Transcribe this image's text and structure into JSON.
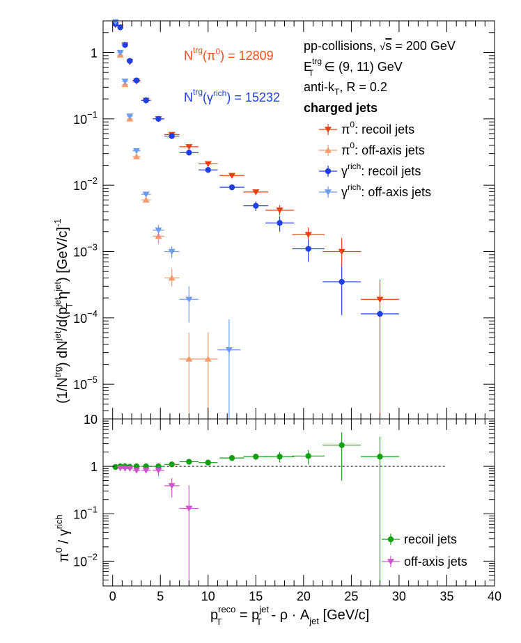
{
  "colors": {
    "pi0_recoil": "#e8400f",
    "pi0_offaxis": "#f59a6a",
    "gamma_recoil": "#1f3fe0",
    "gamma_offaxis": "#6e9cf0",
    "ratio_recoil": "#12a012",
    "ratio_offaxis": "#cc55cc",
    "ntrg_pi0_text": "#f0501a",
    "ntrg_gamma_text": "#1f3fe0"
  },
  "annotations": {
    "ntrg_pi0": {
      "pre": "N",
      "sup": "trg",
      "mid": "(π",
      "sup2": "0",
      "post": ") = 12809"
    },
    "ntrg_gamma": {
      "pre": "N",
      "sup": "trg",
      "mid": "(γ",
      "sup2": "rich",
      "post": ") = 15232"
    },
    "collision": {
      "pre": "pp-collisions, ",
      "sqrt": "√",
      "s": "s",
      "post": " = 200 GeV"
    },
    "et_range": {
      "pre": "E",
      "sup": "trg",
      "sub": "T",
      "post": " ∈ (9, 11) GeV"
    },
    "algo": {
      "pre": "anti-k",
      "sub": "T",
      "post": ", R = 0.2"
    },
    "jets_label": "charged jets"
  },
  "chart_data": [
    {
      "type": "scatter",
      "panel": "top",
      "yscale": "log",
      "xlim": [
        -1,
        40
      ],
      "ylim": [
        3e-06,
        3
      ],
      "ylabel": {
        "p1": "(1/N",
        "s1": "trg",
        "p2": ") dN",
        "s2": "jet",
        "p3": "/d(p",
        "s3": "jet",
        "b3": "T",
        "p4": " η",
        "s4": "jet",
        "p5": ") [GeV/c]",
        "s5": "-1"
      },
      "ytick_labels": [
        {
          "v": 1,
          "t": "1"
        },
        {
          "v": 0.1,
          "b": "10",
          "e": "−1"
        },
        {
          "v": 0.01,
          "b": "10",
          "e": "−2"
        },
        {
          "v": 0.001,
          "b": "10",
          "e": "−3"
        },
        {
          "v": 0.0001,
          "b": "10",
          "e": "−4"
        },
        {
          "v": 1e-05,
          "b": "10",
          "e": "−5"
        }
      ],
      "legend": [
        {
          "key": "pi0_recoil",
          "marker": "tri-down",
          "pre": "π",
          "sup": "0",
          "post": ": recoil jets"
        },
        {
          "key": "pi0_offaxis",
          "marker": "tri-up",
          "pre": "π",
          "sup": "0",
          "post": ": off-axis jets"
        },
        {
          "key": "gamma_recoil",
          "marker": "circle",
          "pre": "γ",
          "sup": "rich",
          "post": ": recoil jets"
        },
        {
          "key": "gamma_offaxis",
          "marker": "tri-down",
          "pre": "γ",
          "sup": "rich",
          "post": ": off-axis jets"
        }
      ],
      "series": [
        {
          "key": "pi0_recoil",
          "name": "π0: recoil jets",
          "marker": "tri-down",
          "points": [
            [
              0.3,
              0.3,
              2.6,
              null,
              null
            ],
            [
              0.8,
              0.3,
              2.4,
              null,
              null
            ],
            [
              1.3,
              0.3,
              1.3,
              null,
              null
            ],
            [
              1.8,
              0.3,
              0.72,
              null,
              null
            ],
            [
              2.5,
              0.4,
              0.37,
              null,
              null
            ],
            [
              3.5,
              0.5,
              0.19,
              null,
              null
            ],
            [
              4.8,
              0.6,
              0.1,
              null,
              null
            ],
            [
              6.2,
              0.8,
              0.058,
              null,
              null
            ],
            [
              8.0,
              1.0,
              0.038,
              null,
              null
            ],
            [
              10.0,
              1.0,
              0.021,
              null,
              null
            ],
            [
              12.5,
              1.3,
              0.014,
              null,
              null
            ],
            [
              15.0,
              1.3,
              0.0079,
              null,
              null
            ],
            [
              17.5,
              1.5,
              0.0042,
              0.0035,
              0.005
            ],
            [
              20.5,
              1.7,
              0.0018,
              0.0014,
              0.0023
            ],
            [
              24.0,
              2.0,
              0.001,
              0.0006,
              0.0016
            ],
            [
              28.0,
              2.0,
              0.00019,
              2.5e-06,
              0.00038
            ]
          ]
        },
        {
          "key": "pi0_offaxis",
          "name": "π0: off-axis jets",
          "marker": "tri-up",
          "points": [
            [
              0.8,
              0.3,
              0.92,
              null,
              null
            ],
            [
              1.3,
              0.3,
              0.33,
              null,
              null
            ],
            [
              1.8,
              0.3,
              0.1,
              null,
              null
            ],
            [
              2.5,
              0.4,
              0.027,
              null,
              null
            ],
            [
              3.5,
              0.5,
              0.006,
              null,
              null
            ],
            [
              4.8,
              0.6,
              0.0017,
              0.0013,
              0.0021
            ],
            [
              6.2,
              0.8,
              0.0004,
              0.0003,
              0.00055
            ],
            [
              8.0,
              1.0,
              2.4e-05,
              2.5e-06,
              6e-05
            ],
            [
              10.0,
              1.0,
              2.4e-05,
              2.5e-06,
              6e-05
            ]
          ]
        },
        {
          "key": "gamma_recoil",
          "name": "γrich: recoil jets",
          "marker": "circle",
          "points": [
            [
              0.3,
              0.3,
              2.7,
              null,
              null
            ],
            [
              0.8,
              0.3,
              2.4,
              null,
              null
            ],
            [
              1.3,
              0.3,
              1.3,
              null,
              null
            ],
            [
              1.8,
              0.3,
              0.75,
              null,
              null
            ],
            [
              2.5,
              0.4,
              0.38,
              null,
              null
            ],
            [
              3.5,
              0.5,
              0.19,
              null,
              null
            ],
            [
              4.8,
              0.6,
              0.1,
              null,
              null
            ],
            [
              6.2,
              0.8,
              0.055,
              null,
              null
            ],
            [
              8.0,
              1.0,
              0.031,
              null,
              null
            ],
            [
              10.0,
              1.0,
              0.017,
              null,
              null
            ],
            [
              12.5,
              1.3,
              0.0093,
              null,
              null
            ],
            [
              15.0,
              1.3,
              0.0049,
              0.0041,
              0.0057
            ],
            [
              17.5,
              1.5,
              0.0027,
              0.002,
              0.0034
            ],
            [
              20.5,
              1.7,
              0.0011,
              0.0007,
              0.0015
            ],
            [
              24.0,
              2.0,
              0.00035,
              0.00011,
              0.0006
            ],
            [
              28.0,
              2.0,
              0.000115,
              null,
              null
            ]
          ]
        },
        {
          "key": "gamma_offaxis",
          "name": "γrich: off-axis jets",
          "marker": "tri-down",
          "points": [
            [
              0.3,
              0.3,
              2.9,
              null,
              null
            ],
            [
              0.8,
              0.3,
              1.0,
              null,
              null
            ],
            [
              1.3,
              0.3,
              0.37,
              null,
              null
            ],
            [
              1.8,
              0.3,
              0.11,
              null,
              null
            ],
            [
              2.5,
              0.4,
              0.033,
              null,
              null
            ],
            [
              3.5,
              0.5,
              0.0073,
              null,
              null
            ],
            [
              4.8,
              0.6,
              0.0021,
              0.0017,
              0.0025
            ],
            [
              6.2,
              0.8,
              0.001,
              0.0008,
              0.0012
            ],
            [
              8.0,
              1.0,
              0.00019,
              8.5e-05,
              0.0003
            ],
            [
              12.2,
              1.2,
              3.3e-05,
              2.5e-06,
              9.5e-05
            ]
          ]
        }
      ]
    },
    {
      "type": "scatter",
      "panel": "bottom",
      "yscale": "log",
      "xlim": [
        -1,
        40
      ],
      "ylim": [
        0.003,
        10
      ],
      "xlabel": {
        "p1": "p",
        "s1": "reco",
        "b1": "T",
        "p2": " = p",
        "s2": "jet",
        "b2": "T",
        "p3": " - ρ · A",
        "b3": "jet",
        "p4": " [GeV/c]"
      },
      "ylabel": {
        "p1": "π",
        "s1": "0",
        "p2": " / γ",
        "s2": "rich"
      },
      "xtick_labels": [
        "0",
        "5",
        "10",
        "15",
        "20",
        "25",
        "30",
        "35",
        "40"
      ],
      "ytick_labels": [
        {
          "v": 10,
          "t": "10"
        },
        {
          "v": 1,
          "t": "1"
        },
        {
          "v": 0.1,
          "b": "10",
          "e": "−1"
        },
        {
          "v": 0.01,
          "b": "10",
          "e": "−2"
        }
      ],
      "reference_line": {
        "y": 1,
        "x0": 0,
        "x1": 35
      },
      "legend": [
        {
          "key": "ratio_recoil",
          "marker": "circle",
          "text": "recoil jets"
        },
        {
          "key": "ratio_offaxis",
          "marker": "tri-down",
          "text": "off-axis jets"
        }
      ],
      "series": [
        {
          "key": "ratio_recoil",
          "name": "recoil jets",
          "marker": "circle",
          "points": [
            [
              0.3,
              0.3,
              0.97,
              null,
              null
            ],
            [
              0.8,
              0.3,
              1.0,
              null,
              null
            ],
            [
              1.3,
              0.3,
              1.0,
              null,
              null
            ],
            [
              1.8,
              0.3,
              0.98,
              null,
              null
            ],
            [
              2.5,
              0.4,
              1.0,
              null,
              null
            ],
            [
              3.5,
              0.5,
              1.0,
              null,
              null
            ],
            [
              4.8,
              0.6,
              1.0,
              null,
              null
            ],
            [
              6.2,
              0.8,
              1.1,
              null,
              null
            ],
            [
              8.0,
              1.0,
              1.25,
              null,
              null
            ],
            [
              10.0,
              1.0,
              1.2,
              null,
              null
            ],
            [
              12.5,
              1.3,
              1.5,
              null,
              null
            ],
            [
              15.0,
              1.3,
              1.6,
              1.35,
              1.85
            ],
            [
              17.5,
              1.5,
              1.6,
              1.2,
              2.0
            ],
            [
              20.5,
              1.7,
              1.65,
              1.1,
              2.2
            ],
            [
              24.0,
              2.0,
              2.8,
              0.5,
              5.2
            ],
            [
              28.0,
              2.0,
              1.6,
              0.003,
              4.2
            ]
          ]
        },
        {
          "key": "ratio_offaxis",
          "name": "off-axis jets",
          "marker": "tri-down",
          "points": [
            [
              0.8,
              0.3,
              0.92,
              null,
              null
            ],
            [
              1.3,
              0.3,
              0.9,
              null,
              null
            ],
            [
              1.8,
              0.3,
              0.9,
              null,
              null
            ],
            [
              2.5,
              0.4,
              0.82,
              null,
              null
            ],
            [
              3.5,
              0.5,
              0.82,
              null,
              null
            ],
            [
              4.8,
              0.6,
              0.82,
              0.62,
              1.0
            ],
            [
              6.2,
              0.8,
              0.39,
              0.22,
              0.56
            ],
            [
              8.0,
              1.0,
              0.13,
              0.003,
              0.4
            ]
          ]
        }
      ]
    }
  ]
}
